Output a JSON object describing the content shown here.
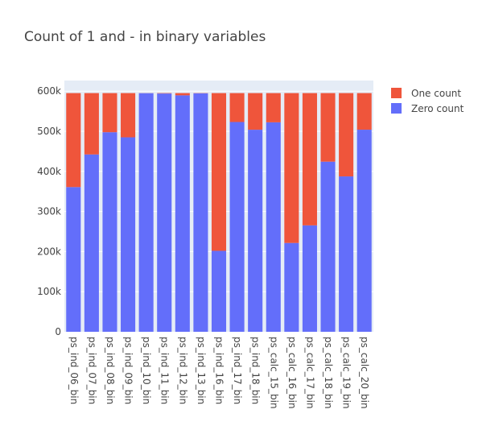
{
  "chart_data": {
    "type": "bar",
    "stacked": true,
    "title": "Count of 1 and - in binary variables",
    "xlabel": "",
    "ylabel": "",
    "categories": [
      "ps_ind_06_bin",
      "ps_ind_07_bin",
      "ps_ind_08_bin",
      "ps_ind_09_bin",
      "ps_ind_10_bin",
      "ps_ind_11_bin",
      "ps_ind_12_bin",
      "ps_ind_13_bin",
      "ps_ind_16_bin",
      "ps_ind_17_bin",
      "ps_ind_18_bin",
      "ps_calc_15_bin",
      "ps_calc_16_bin",
      "ps_calc_17_bin",
      "ps_calc_18_bin",
      "ps_calc_19_bin",
      "ps_calc_20_bin"
    ],
    "series": [
      {
        "name": "Zero count",
        "color": "#636efa",
        "values": [
          360852,
          442223,
          497644,
          484917,
          594990,
          594205,
          589594,
          594648,
          201882,
          523143,
          503879,
          522342,
          221514,
          265356,
          424278,
          387469,
          503955
        ]
      },
      {
        "name": "One count",
        "color": "#ef553b",
        "values": [
          234360,
          152989,
          97568,
          110295,
          222,
          1007,
          5618,
          564,
          393330,
          72069,
          91333,
          72870,
          373698,
          329856,
          170934,
          207743,
          91257
        ]
      }
    ],
    "yticks": [
      0,
      100000,
      200000,
      300000,
      400000,
      500000,
      600000
    ],
    "ytick_labels": [
      "0",
      "100k",
      "200k",
      "300k",
      "400k",
      "500k",
      "600k"
    ],
    "ylim": [
      0,
      626539
    ],
    "legend_position": "top-right",
    "grid": true,
    "plot_background": "#e5ecf6"
  }
}
